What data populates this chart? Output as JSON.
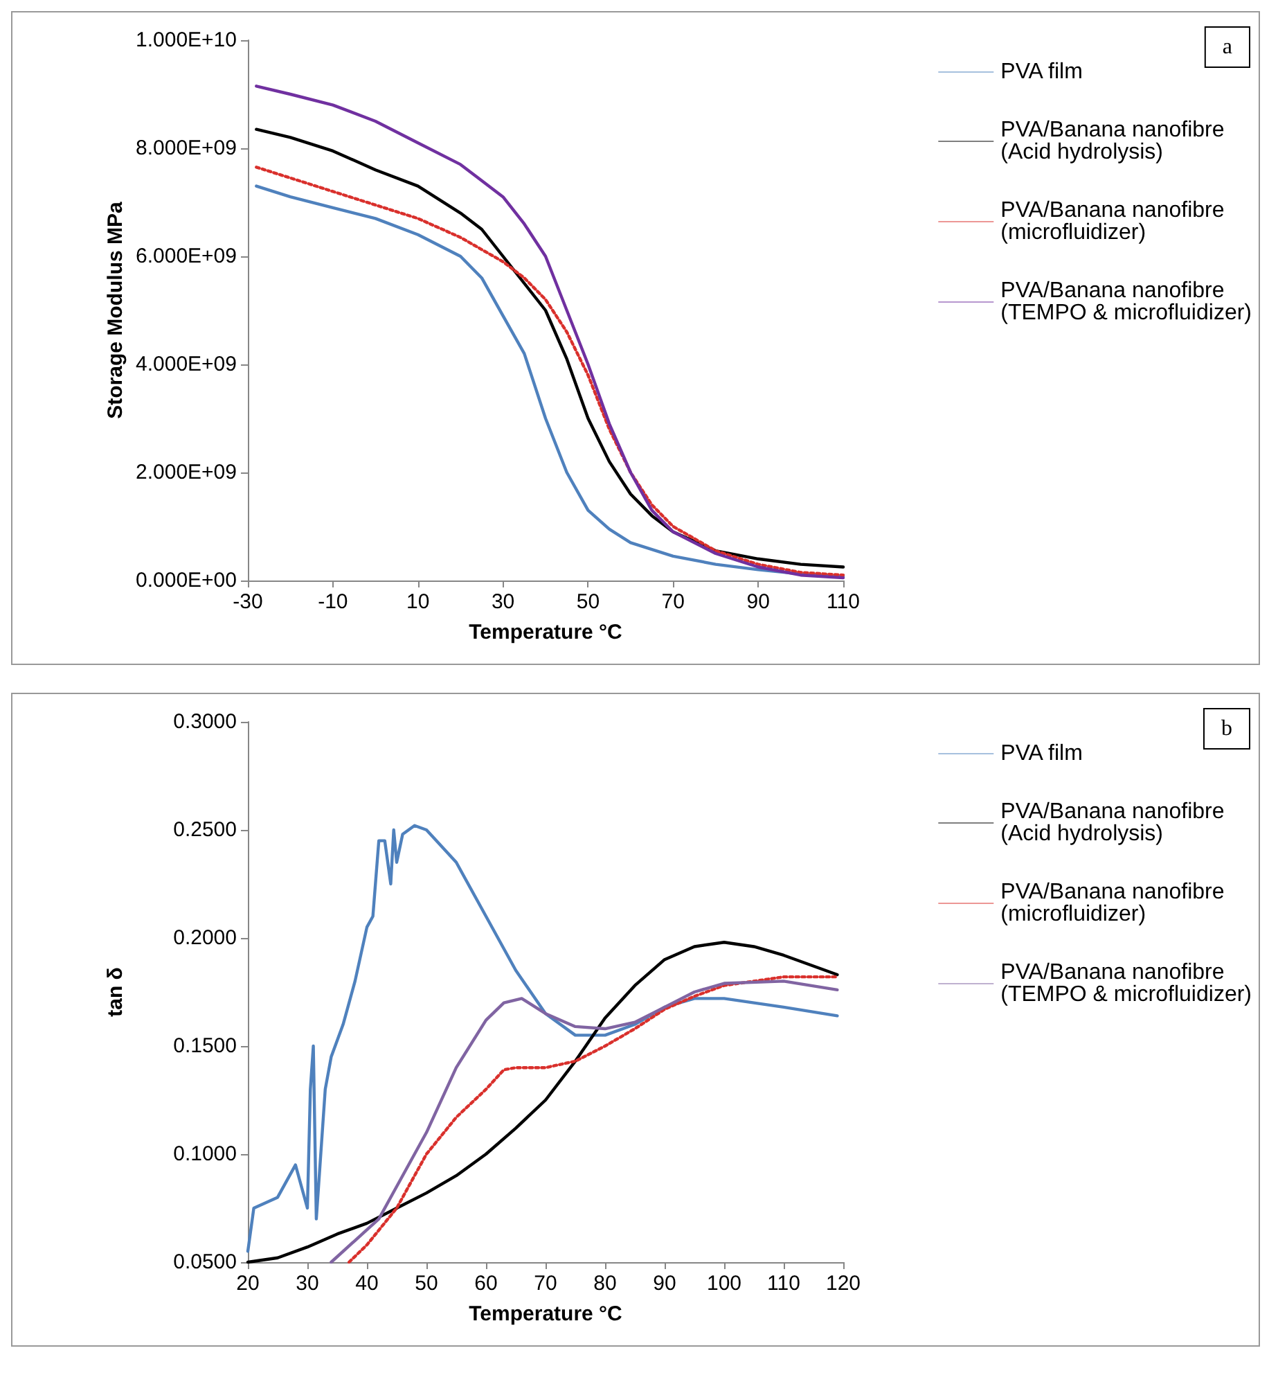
{
  "chart_data": [
    {
      "type": "line",
      "xlabel": "Temperature °C",
      "ylabel": "Storage Modulus MPa",
      "annotations": [
        "a"
      ],
      "xlim": [
        -30,
        110
      ],
      "xticks": [
        -30,
        -10,
        10,
        30,
        50,
        70,
        90,
        110
      ],
      "ylim": [
        0,
        10000000000
      ],
      "yticks": [
        {
          "value": 0,
          "label": "0.000E+00"
        },
        {
          "value": 2000000000,
          "label": "2.000E+09"
        },
        {
          "value": 4000000000,
          "label": "4.000E+09"
        },
        {
          "value": 6000000000,
          "label": "6.000E+09"
        },
        {
          "value": 8000000000,
          "label": "8.000E+09"
        },
        {
          "value": 10000000000,
          "label": "1.000E+10"
        }
      ],
      "grid": false,
      "legend": "right",
      "marker": "none",
      "line_style": "solid",
      "series": [
        {
          "name": "PVA film",
          "color": "#4f81bd",
          "x": [
            -28,
            -20,
            -10,
            0,
            10,
            20,
            25,
            30,
            35,
            40,
            45,
            50,
            55,
            60,
            70,
            80,
            90,
            100,
            110
          ],
          "values": [
            7300000000,
            7100000000,
            6900000000,
            6700000000,
            6400000000,
            6000000000,
            5600000000,
            4900000000,
            4200000000,
            3000000000,
            2000000000,
            1300000000,
            950000000,
            700000000,
            450000000,
            300000000,
            200000000,
            120000000,
            70000000
          ]
        },
        {
          "name": "PVA/Banana nanofibre (Acid hydrolysis)",
          "color": "#000000",
          "x": [
            -28,
            -20,
            -10,
            0,
            10,
            20,
            25,
            30,
            35,
            40,
            45,
            50,
            55,
            60,
            65,
            70,
            80,
            90,
            100,
            110
          ],
          "values": [
            8350000000,
            8200000000,
            7950000000,
            7600000000,
            7300000000,
            6800000000,
            6500000000,
            6000000000,
            5500000000,
            5000000000,
            4100000000,
            3000000000,
            2200000000,
            1600000000,
            1200000000,
            900000000,
            550000000,
            400000000,
            300000000,
            250000000
          ]
        },
        {
          "name": "PVA/Banana nanofibre (microfluidizer)",
          "color": "#d9302c",
          "line_style": "dotted",
          "x": [
            -28,
            -20,
            -10,
            0,
            10,
            20,
            30,
            35,
            40,
            45,
            50,
            55,
            60,
            65,
            70,
            80,
            90,
            100,
            110
          ],
          "values": [
            7650000000,
            7450000000,
            7200000000,
            6950000000,
            6700000000,
            6350000000,
            5900000000,
            5600000000,
            5200000000,
            4600000000,
            3800000000,
            2800000000,
            2000000000,
            1400000000,
            1000000000,
            550000000,
            300000000,
            150000000,
            100000000
          ]
        },
        {
          "name": "PVA/Banana nanofibre (TEMPO & microfluidizer)",
          "color": "#7030a0",
          "x": [
            -28,
            -20,
            -10,
            0,
            10,
            20,
            30,
            35,
            40,
            45,
            50,
            55,
            60,
            65,
            70,
            80,
            90,
            100,
            110
          ],
          "values": [
            9150000000,
            9000000000,
            8800000000,
            8500000000,
            8100000000,
            7700000000,
            7100000000,
            6600000000,
            6000000000,
            5000000000,
            4000000000,
            2900000000,
            2000000000,
            1300000000,
            900000000,
            500000000,
            250000000,
            100000000,
            50000000
          ]
        }
      ]
    },
    {
      "type": "line",
      "xlabel": "Temperature °C",
      "ylabel": "tan δ",
      "annotations": [
        "b"
      ],
      "xlim": [
        20,
        120
      ],
      "xticks": [
        20,
        30,
        40,
        50,
        60,
        70,
        80,
        90,
        100,
        110,
        120
      ],
      "ylim": [
        0.05,
        0.3
      ],
      "yticks": [
        {
          "value": 0.05,
          "label": "0.0500"
        },
        {
          "value": 0.1,
          "label": "0.1000"
        },
        {
          "value": 0.15,
          "label": "0.1500"
        },
        {
          "value": 0.2,
          "label": "0.2000"
        },
        {
          "value": 0.25,
          "label": "0.2500"
        },
        {
          "value": 0.3,
          "label": "0.3000"
        }
      ],
      "grid": false,
      "legend": "right",
      "marker": "none",
      "line_style": "solid",
      "series": [
        {
          "name": "PVA film",
          "color": "#4f81bd",
          "x": [
            20,
            21,
            25,
            28,
            30,
            30.5,
            31,
            31.5,
            33,
            34,
            36,
            38,
            40,
            41,
            42,
            43,
            44,
            44.5,
            45,
            46,
            48,
            50,
            55,
            60,
            65,
            70,
            75,
            80,
            85,
            90,
            95,
            100,
            110,
            119
          ],
          "values": [
            0.055,
            0.075,
            0.08,
            0.095,
            0.075,
            0.13,
            0.15,
            0.07,
            0.13,
            0.145,
            0.16,
            0.18,
            0.205,
            0.21,
            0.245,
            0.245,
            0.225,
            0.25,
            0.235,
            0.248,
            0.252,
            0.25,
            0.235,
            0.21,
            0.185,
            0.165,
            0.155,
            0.155,
            0.16,
            0.168,
            0.172,
            0.172,
            0.168,
            0.164
          ]
        },
        {
          "name": "PVA/Banana nanofibre (Acid hydrolysis)",
          "color": "#000000",
          "x": [
            20,
            25,
            30,
            35,
            40,
            45,
            50,
            55,
            60,
            65,
            70,
            75,
            80,
            85,
            90,
            95,
            100,
            105,
            110,
            119
          ],
          "values": [
            0.05,
            0.052,
            0.057,
            0.063,
            0.068,
            0.075,
            0.082,
            0.09,
            0.1,
            0.112,
            0.125,
            0.143,
            0.163,
            0.178,
            0.19,
            0.196,
            0.198,
            0.196,
            0.192,
            0.183
          ]
        },
        {
          "name": "PVA/Banana nanofibre (microfluidizer)",
          "color": "#d9302c",
          "line_style": "dotted",
          "x": [
            37,
            40,
            45,
            50,
            55,
            60,
            63,
            65,
            70,
            75,
            80,
            85,
            90,
            95,
            100,
            110,
            119
          ],
          "values": [
            0.05,
            0.058,
            0.075,
            0.1,
            0.117,
            0.13,
            0.139,
            0.14,
            0.14,
            0.143,
            0.15,
            0.158,
            0.167,
            0.173,
            0.178,
            0.182,
            0.182
          ]
        },
        {
          "name": "PVA/Banana nanofibre (TEMPO & microfluidizer)",
          "color": "#8064a2",
          "x": [
            34,
            38,
            42,
            45,
            50,
            55,
            60,
            63,
            66,
            70,
            75,
            80,
            85,
            90,
            95,
            100,
            110,
            119
          ],
          "values": [
            0.05,
            0.06,
            0.07,
            0.085,
            0.11,
            0.14,
            0.162,
            0.17,
            0.172,
            0.165,
            0.159,
            0.158,
            0.161,
            0.168,
            0.175,
            0.179,
            0.18,
            0.176
          ]
        }
      ]
    }
  ]
}
